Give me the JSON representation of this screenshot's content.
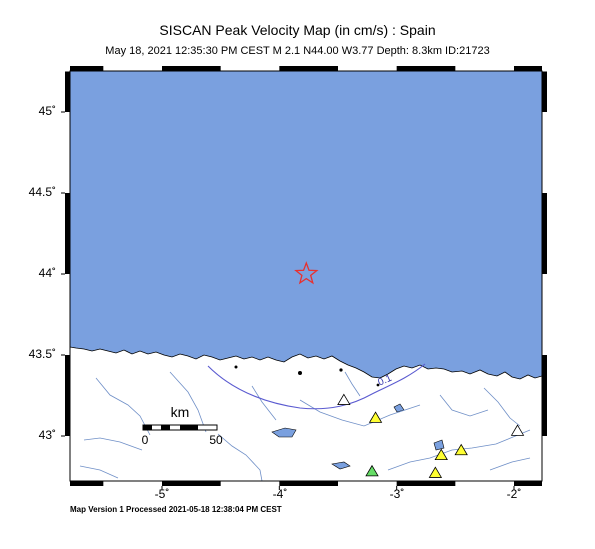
{
  "header": {
    "title": "SISCAN Peak Velocity Map (in cm/s) : Spain",
    "subtitle": "May 18, 2021 12:35:30 PM CEST   M 2.1   N44.00 W3.77   Depth: 8.3km   ID:21723"
  },
  "footer": {
    "text": "Map Version 1 Processed 2021-05-18 12:38:04 PM CEST"
  },
  "map": {
    "lat_labels": [
      "45˚",
      "44.5˚",
      "44˚",
      "43.5˚",
      "43˚"
    ],
    "lon_labels": [
      "-5˚",
      "-4˚",
      "-3˚",
      "-2˚"
    ],
    "contour_label": "0.1",
    "scale_bar": {
      "unit": "km",
      "start": "0",
      "end": "50"
    },
    "colors": {
      "sea": "#7aa0df",
      "land": "#ffffff",
      "epicenter": "#e8302e",
      "contour": "#5a5ad0",
      "river": "#6f8fc7"
    },
    "epicenter": {
      "lat": 44.0,
      "lon": -3.77,
      "icon": "star-icon"
    },
    "stations": [
      {
        "lon": -3.45,
        "lat": 43.22,
        "color": "#ffffff"
      },
      {
        "lon": -3.18,
        "lat": 43.11,
        "color": "#ffff33"
      },
      {
        "lon": -1.97,
        "lat": 43.03,
        "color": "#ffffff"
      },
      {
        "lon": -2.45,
        "lat": 42.91,
        "color": "#ffff33"
      },
      {
        "lon": -2.62,
        "lat": 42.88,
        "color": "#ffff33"
      },
      {
        "lon": -3.21,
        "lat": 42.78,
        "color": "#66dd66"
      },
      {
        "lon": -2.67,
        "lat": 42.77,
        "color": "#ffff33"
      }
    ]
  }
}
